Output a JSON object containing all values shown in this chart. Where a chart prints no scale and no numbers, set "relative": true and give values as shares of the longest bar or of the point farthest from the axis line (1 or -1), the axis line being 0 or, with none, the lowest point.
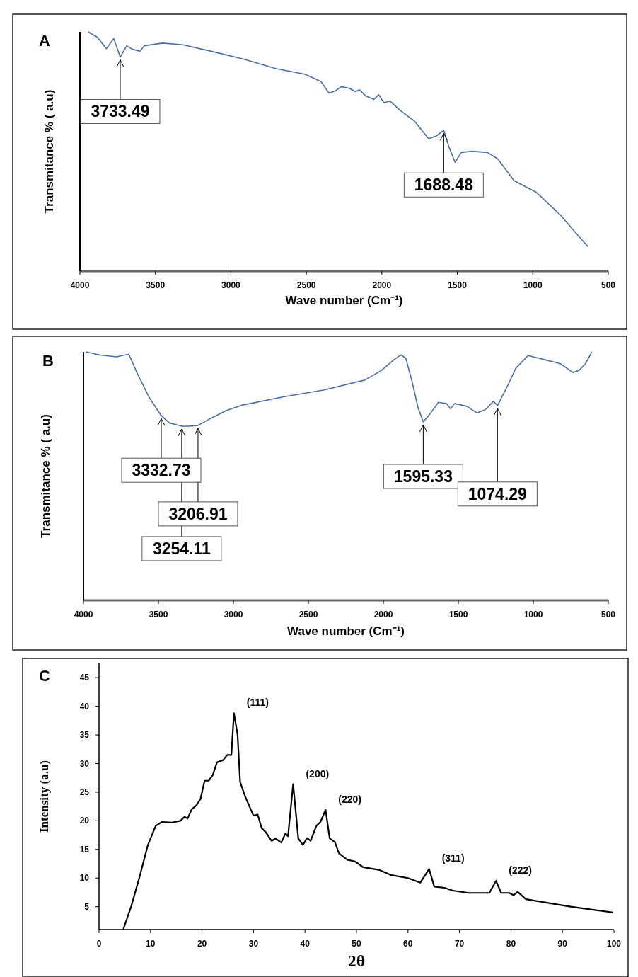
{
  "chart_data": [
    {
      "type": "line",
      "title": "A",
      "xlabel": "Wave number (Cm⁻¹)",
      "ylabel": "Transmitance % ( a.u)",
      "relative": true,
      "xlim": [
        4000,
        500
      ],
      "xticks": [
        4000,
        3500,
        3000,
        2500,
        2000,
        1500,
        1000,
        500
      ],
      "grid": false,
      "legend": false,
      "marker": "none",
      "line_style": "solid",
      "series": [
        {
          "color": "#4a6fa5",
          "x": [
            3946,
            3884,
            3825,
            3776,
            3733,
            3690,
            3655,
            3601,
            3574,
            3453,
            3318,
            3130,
            2915,
            2700,
            2511,
            2404,
            2350,
            2309,
            2269,
            2215,
            2175,
            2148,
            2107,
            2053,
            2021,
            1986,
            1946,
            1878,
            1784,
            1690,
            1637,
            1590,
            1555,
            1515,
            1474,
            1407,
            1299,
            1232,
            1124,
            976,
            815,
            707,
            634
          ],
          "values": [
            1.0,
            0.977,
            0.93,
            0.972,
            0.895,
            0.942,
            0.928,
            0.919,
            0.942,
            0.953,
            0.946,
            0.919,
            0.886,
            0.846,
            0.823,
            0.793,
            0.744,
            0.753,
            0.771,
            0.764,
            0.75,
            0.758,
            0.732,
            0.718,
            0.737,
            0.704,
            0.711,
            0.671,
            0.627,
            0.553,
            0.566,
            0.588,
            0.518,
            0.455,
            0.496,
            0.501,
            0.496,
            0.469,
            0.378,
            0.329,
            0.233,
            0.154,
            0.102
          ]
        }
      ],
      "annotations": [
        {
          "text": "3733.49",
          "x": 3733,
          "y": 0.895
        },
        {
          "text": "1688.48",
          "x": 1590,
          "y": 0.588
        }
      ]
    },
    {
      "type": "line",
      "title": "B",
      "xlabel": "Wave number (Cm⁻¹)",
      "ylabel": "Transmitance % ( a.u)",
      "relative": true,
      "xlim": [
        4000,
        500
      ],
      "xticks": [
        4000,
        3500,
        3000,
        2500,
        2000,
        1500,
        1000,
        500
      ],
      "grid": false,
      "legend": false,
      "marker": "none",
      "line_style": "solid",
      "series": [
        {
          "color": "#4a6fa5",
          "x": [
            3984,
            3889,
            3780,
            3698,
            3644,
            3562,
            3481,
            3427,
            3345,
            3291,
            3236,
            3155,
            3046,
            2938,
            2666,
            2394,
            2122,
            2014,
            1932,
            1883,
            1851,
            1810,
            1769,
            1734,
            1688,
            1633,
            1579,
            1552,
            1525,
            1443,
            1375,
            1321,
            1266,
            1239,
            1171,
            1117,
            1035,
            927,
            818,
            736,
            696,
            655,
            609
          ],
          "values": [
            1.0,
            0.987,
            0.98,
            0.991,
            0.917,
            0.817,
            0.743,
            0.714,
            0.701,
            0.701,
            0.704,
            0.731,
            0.764,
            0.786,
            0.819,
            0.847,
            0.887,
            0.925,
            0.967,
            0.988,
            0.975,
            0.884,
            0.776,
            0.718,
            0.751,
            0.797,
            0.792,
            0.771,
            0.792,
            0.781,
            0.754,
            0.767,
            0.801,
            0.784,
            0.864,
            0.934,
            0.985,
            0.969,
            0.952,
            0.917,
            0.925,
            0.95,
            1.0
          ]
        }
      ],
      "annotations": [
        {
          "text": "3332.73",
          "x": 3481,
          "y": 0.743
        },
        {
          "text": "3206.91",
          "x": 3236,
          "y": 0.704
        },
        {
          "text": "3254.11",
          "x": 3345,
          "y": 0.701
        },
        {
          "text": "1595.33",
          "x": 1734,
          "y": 0.718
        },
        {
          "text": "1074.29",
          "x": 1239,
          "y": 0.784
        }
      ]
    },
    {
      "type": "line",
      "title": "C",
      "xlabel": "2θ",
      "ylabel": "Intensity (a.u)",
      "xlim": [
        0,
        100
      ],
      "xticks": [
        0,
        10,
        20,
        30,
        40,
        50,
        60,
        70,
        80,
        90,
        100
      ],
      "ylim": [
        1,
        47.5
      ],
      "yticks": [
        5,
        10,
        15,
        20,
        25,
        30,
        35,
        40,
        45
      ],
      "grid": false,
      "legend": false,
      "marker": "none",
      "line_style": "solid",
      "series": [
        {
          "color": "#000000",
          "x": [
            4.7,
            6.3,
            7.9,
            9.5,
            11.0,
            12.2,
            14.2,
            15.8,
            16.6,
            17.2,
            18.0,
            18.9,
            19.7,
            20.5,
            21.3,
            22.1,
            22.9,
            24.1,
            24.9,
            25.7,
            26.2,
            26.9,
            27.4,
            28.4,
            30.0,
            30.8,
            31.6,
            32.4,
            33.5,
            34.3,
            35.4,
            36.2,
            36.7,
            37.7,
            38.7,
            39.6,
            40.4,
            41.1,
            42.2,
            43.0,
            44.0,
            44.8,
            45.8,
            46.6,
            48.2,
            49.7,
            51.3,
            54.5,
            56.8,
            60.0,
            62.4,
            64.1,
            65.1,
            67.1,
            68.7,
            71.8,
            75.8,
            77.1,
            78.1,
            79.7,
            80.5,
            81.3,
            82.9,
            87.6,
            91.6,
            95.5,
            99.8
          ],
          "values": [
            1.0,
            5.2,
            10.3,
            15.8,
            19.1,
            19.8,
            19.7,
            20.0,
            20.7,
            20.4,
            22.0,
            22.7,
            23.8,
            27.0,
            27.0,
            28.0,
            30.2,
            30.6,
            31.5,
            31.5,
            38.8,
            35.1,
            26.8,
            24.2,
            20.9,
            21.1,
            18.7,
            18.0,
            16.5,
            16.9,
            16.2,
            17.8,
            17.3,
            26.4,
            16.9,
            15.8,
            17.0,
            16.5,
            19.1,
            19.8,
            21.9,
            16.9,
            16.3,
            14.3,
            13.2,
            12.9,
            11.9,
            11.4,
            10.5,
            10.0,
            9.2,
            11.6,
            8.5,
            8.3,
            7.8,
            7.4,
            7.4,
            9.5,
            7.4,
            7.4,
            7.0,
            7.6,
            6.3,
            5.6,
            5.0,
            4.5,
            4.0
          ]
        }
      ],
      "annotations": [
        {
          "text": "(111)",
          "x": 26.2,
          "y": 38.8
        },
        {
          "text": "(200)",
          "x": 37.7,
          "y": 26.4
        },
        {
          "text": "(220)",
          "x": 44.0,
          "y": 21.9
        },
        {
          "text": "(311)",
          "x": 64.1,
          "y": 11.6
        },
        {
          "text": "(222)",
          "x": 77.1,
          "y": 9.5
        }
      ]
    }
  ]
}
